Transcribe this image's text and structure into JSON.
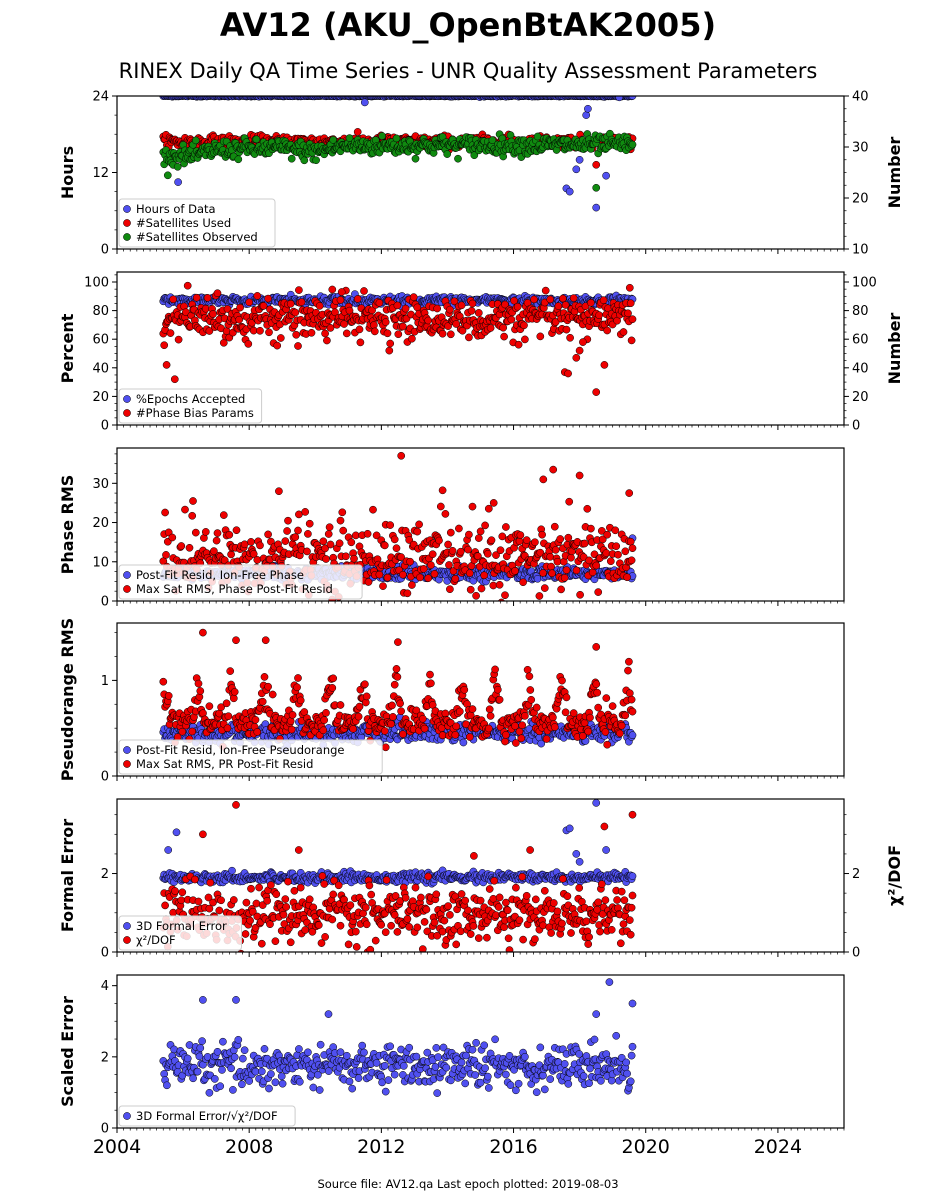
{
  "page": {
    "title": "AV12 (AKU_OpenBtAK2005)",
    "subtitle": "RINEX Daily QA Time Series - UNR Quality Assessment Parameters",
    "footer": "Source file: AV12.qa Last epoch plotted: 2019-08-03"
  },
  "colors": {
    "blue": "#5050f0",
    "red": "#ee0000",
    "green": "#108a10",
    "edge": "#000000"
  },
  "chart_data": [
    {
      "type": "scatter",
      "xlim": [
        2004,
        2026
      ],
      "xticks": [
        2004,
        2008,
        2012,
        2016,
        2020,
        2024
      ],
      "xtick_labels": [
        "2004",
        "2008",
        "2012",
        "2016",
        "2020",
        "2024"
      ],
      "ylabel": "Hours",
      "ylim": [
        0,
        24
      ],
      "yticks": [
        0,
        12,
        24
      ],
      "y2label": "Number",
      "y2lim": [
        10,
        40
      ],
      "y2ticks": [
        10,
        20,
        30,
        40
      ],
      "legend": "lower-left",
      "series": [
        {
          "name": "Hours of Data",
          "color": "blue",
          "axis": "left",
          "x_range": [
            2005.4,
            2019.6
          ],
          "base": 24,
          "noise": 0.05,
          "outliers": [
            [
              2005.65,
              15
            ],
            [
              2005.85,
              10.5
            ],
            [
              2011.5,
              23
            ],
            [
              2017.6,
              9.5
            ],
            [
              2017.7,
              9
            ],
            [
              2017.9,
              12.5
            ],
            [
              2018.0,
              14
            ],
            [
              2018.2,
              21
            ],
            [
              2018.25,
              22
            ],
            [
              2018.5,
              6.5
            ],
            [
              2018.8,
              11.5
            ],
            [
              2019.2,
              23.8
            ]
          ]
        },
        {
          "name": "#Satellites Used",
          "color": "red",
          "axis": "right",
          "x_range": [
            2005.4,
            2019.6
          ],
          "base": 31,
          "noise": 0.6,
          "outliers": [
            [
              2009.6,
              30.2
            ],
            [
              2018.5,
              26.5
            ]
          ]
        },
        {
          "name": "#Satellites Observed",
          "color": "green",
          "axis": "right",
          "x_range": [
            2005.4,
            2019.6
          ],
          "base": 30,
          "noise": 0.9,
          "trend": [
            [
              2005.4,
              28
            ],
            [
              2006.5,
              28.5
            ],
            [
              2007,
              29.5
            ],
            [
              2009,
              29.8
            ],
            [
              2010,
              29
            ],
            [
              2010.8,
              30.2
            ],
            [
              2019.6,
              30.5
            ]
          ],
          "outliers": [
            [
              2018.5,
              22
            ]
          ]
        }
      ]
    },
    {
      "type": "scatter",
      "xlim": [
        2004,
        2026
      ],
      "xticks": [
        2004,
        2008,
        2012,
        2016,
        2020,
        2024
      ],
      "ylabel": "Percent",
      "ylim": [
        0,
        107
      ],
      "yticks": [
        0,
        20,
        40,
        60,
        80,
        100
      ],
      "y2label": "Number",
      "y2lim": [
        0,
        107
      ],
      "y2ticks": [
        0,
        20,
        40,
        60,
        80,
        100
      ],
      "legend": "lower-left",
      "series": [
        {
          "name": "%Epochs Accepted",
          "color": "blue",
          "axis": "left",
          "x_range": [
            2005.4,
            2019.6
          ],
          "base": 87,
          "noise": 1.3,
          "outliers": []
        },
        {
          "name": "#Phase Bias Params",
          "color": "red",
          "axis": "right",
          "x_range": [
            2005.4,
            2019.6
          ],
          "base": 74,
          "noise": 7,
          "outliers": [
            [
              2005.5,
              42
            ],
            [
              2005.75,
              32
            ],
            [
              2017.55,
              37
            ],
            [
              2017.65,
              36
            ],
            [
              2017.9,
              47
            ],
            [
              2018.0,
              52
            ],
            [
              2018.1,
              58
            ],
            [
              2018.5,
              23
            ],
            [
              2018.75,
              42
            ],
            [
              2010.8,
              93
            ]
          ]
        }
      ]
    },
    {
      "type": "scatter",
      "xlim": [
        2004,
        2026
      ],
      "xticks": [
        2004,
        2008,
        2012,
        2016,
        2020,
        2024
      ],
      "ylabel": "Phase RMS",
      "ylim": [
        0,
        39
      ],
      "yticks": [
        0,
        10,
        20,
        30
      ],
      "legend": "lower-left",
      "series": [
        {
          "name": "Post-Fit Resid, Ion-Free Phase",
          "color": "blue",
          "axis": "left",
          "x_range": [
            2005.4,
            2019.6
          ],
          "base": 7,
          "noise": 0.8,
          "outliers": [
            [
              2019.6,
              16
            ]
          ]
        },
        {
          "name": "Max Sat RMS, Phase Post-Fit Resid",
          "color": "red",
          "axis": "left",
          "x_range": [
            2005.4,
            2019.6
          ],
          "base": 11,
          "noise": 4.5,
          "outliers": [
            [
              2012.6,
              37
            ],
            [
              2017.2,
              33.5
            ],
            [
              2018.0,
              32
            ],
            [
              2016.9,
              31
            ],
            [
              2019.5,
              27.5
            ],
            [
              2006.3,
              25.5
            ],
            [
              2008.9,
              28
            ],
            [
              2015.4,
              25
            ]
          ]
        }
      ]
    },
    {
      "type": "scatter",
      "xlim": [
        2004,
        2026
      ],
      "xticks": [
        2004,
        2008,
        2012,
        2016,
        2020,
        2024
      ],
      "ylabel": "Pseudorange RMS",
      "ylim": [
        0,
        1.6
      ],
      "yticks": [
        0,
        1
      ],
      "legend": "lower-left",
      "series": [
        {
          "name": "Post-Fit Resid, Ion-Free Pseudorange",
          "color": "blue",
          "axis": "left",
          "x_range": [
            2005.4,
            2019.6
          ],
          "base": 0.45,
          "noise": 0.05,
          "outliers": []
        },
        {
          "name": "Max Sat RMS, PR Post-Fit Resid",
          "color": "red",
          "axis": "left",
          "x_range": [
            2005.4,
            2019.6
          ],
          "base": 0.55,
          "noise": 0.1,
          "seasonal": 0.45,
          "outliers": [
            [
              2006.6,
              1.5
            ],
            [
              2007.6,
              1.42
            ],
            [
              2008.5,
              1.42
            ],
            [
              2012.5,
              1.4
            ],
            [
              2018.5,
              1.35
            ]
          ]
        }
      ]
    },
    {
      "type": "scatter",
      "xlim": [
        2004,
        2026
      ],
      "xticks": [
        2004,
        2008,
        2012,
        2016,
        2020,
        2024
      ],
      "ylabel": "Formal Error",
      "ylim": [
        0,
        3.9
      ],
      "yticks": [
        0,
        2
      ],
      "y2label": "χ²/DOF",
      "y2lim": [
        0,
        3.9
      ],
      "y2ticks": [
        0,
        2
      ],
      "legend": "lower-left",
      "series": [
        {
          "name": "3D Formal Error",
          "color": "blue",
          "axis": "left",
          "x_range": [
            2005.4,
            2019.6
          ],
          "base": 1.9,
          "noise": 0.06,
          "outliers": [
            [
              2005.55,
              2.6
            ],
            [
              2005.8,
              3.05
            ],
            [
              2017.6,
              3.1
            ],
            [
              2017.7,
              3.15
            ],
            [
              2017.9,
              2.5
            ],
            [
              2018.0,
              2.3
            ],
            [
              2018.5,
              3.8
            ],
            [
              2018.8,
              2.6
            ]
          ]
        },
        {
          "name": "χ²/DOF",
          "color": "red",
          "axis": "right",
          "x_range": [
            2005.4,
            2019.6
          ],
          "base": 0.95,
          "noise": 0.35,
          "outliers": [
            [
              2007.6,
              3.75
            ],
            [
              2006.6,
              3.0
            ],
            [
              2018.75,
              3.2
            ],
            [
              2019.6,
              3.5
            ],
            [
              2009.5,
              2.6
            ],
            [
              2014.8,
              2.45
            ],
            [
              2016.5,
              2.6
            ]
          ]
        }
      ]
    },
    {
      "type": "scatter",
      "xlim": [
        2004,
        2026
      ],
      "xticks": [
        2004,
        2008,
        2012,
        2016,
        2020,
        2024
      ],
      "xtick_labels": [
        "2004",
        "2008",
        "2012",
        "2016",
        "2020",
        "2024"
      ],
      "ylabel": "Scaled Error",
      "ylim": [
        0,
        4.3
      ],
      "yticks": [
        0,
        2,
        4
      ],
      "legend": "lower-left",
      "series": [
        {
          "name": "3D Formal Error/√χ²/DOF",
          "color": "blue",
          "axis": "left",
          "x_range": [
            2005.4,
            2019.6
          ],
          "base": 1.75,
          "noise": 0.3,
          "outliers": [
            [
              2006.6,
              3.6
            ],
            [
              2007.6,
              3.6
            ],
            [
              2010.4,
              3.2
            ],
            [
              2018.9,
              4.1
            ],
            [
              2019.6,
              3.5
            ],
            [
              2018.5,
              3.2
            ]
          ]
        }
      ]
    }
  ]
}
